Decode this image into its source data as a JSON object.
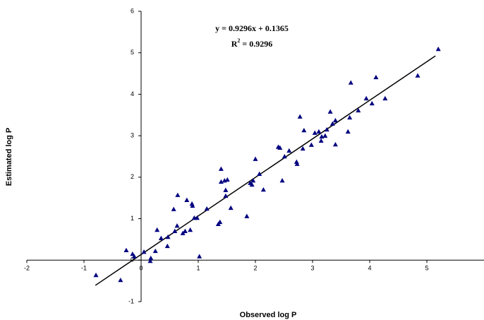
{
  "chart_data": {
    "type": "scatter",
    "x_label": "Observed log P",
    "y_label": "Estimated log P",
    "annotations": {
      "equation": "y = 0.9296x + 0.1365",
      "r2": {
        "base": "R",
        "sup": "2",
        "rest": " = 0.9296"
      }
    },
    "xlim": [
      -2,
      6
    ],
    "xticks": [
      -2,
      -1,
      0,
      1,
      2,
      3,
      4,
      5
    ],
    "ylim": [
      -1,
      6
    ],
    "yticks": [
      -1,
      0,
      1,
      2,
      3,
      4,
      5,
      6
    ],
    "marker_color": "#000080",
    "line_color": "#000000",
    "trendline": {
      "slope": 0.9296,
      "intercept": 0.1365,
      "x": [
        -0.8,
        5.15
      ]
    },
    "x": [
      -0.79,
      -0.36,
      -0.26,
      -0.15,
      -0.12,
      0.05,
      0.16,
      0.17,
      0.25,
      0.28,
      0.35,
      0.46,
      0.47,
      0.57,
      0.59,
      0.63,
      0.64,
      0.73,
      0.77,
      0.8,
      0.86,
      0.89,
      0.9,
      0.93,
      0.98,
      1.02,
      1.15,
      1.35,
      1.38,
      1.4,
      1.4,
      1.46,
      1.48,
      1.48,
      1.51,
      1.57,
      1.85,
      1.91,
      1.94,
      1.96,
      2.0,
      2.07,
      2.14,
      2.4,
      2.43,
      2.47,
      2.51,
      2.59,
      2.72,
      2.73,
      2.78,
      2.83,
      2.85,
      2.98,
      3.04,
      3.11,
      3.15,
      3.16,
      3.22,
      3.25,
      3.31,
      3.35,
      3.4,
      3.4,
      3.62,
      3.65,
      3.67,
      3.8,
      3.94,
      4.04,
      4.11,
      4.27,
      4.84,
      5.2
    ],
    "values": [
      -0.36,
      -0.48,
      0.24,
      0.15,
      0.09,
      0.2,
      -0.02,
      0.05,
      0.22,
      0.73,
      0.53,
      0.34,
      0.56,
      1.23,
      0.7,
      0.83,
      1.57,
      0.65,
      0.7,
      1.45,
      0.73,
      1.36,
      1.31,
      1.02,
      1.02,
      0.09,
      1.24,
      0.87,
      0.92,
      2.2,
      1.89,
      1.92,
      1.69,
      1.55,
      1.94,
      1.26,
      1.06,
      1.86,
      1.82,
      1.92,
      2.44,
      2.08,
      1.7,
      2.73,
      2.71,
      1.92,
      2.5,
      2.64,
      2.37,
      2.32,
      3.46,
      2.69,
      3.13,
      2.78,
      3.07,
      3.1,
      2.88,
      2.98,
      3.0,
      3.15,
      3.58,
      3.29,
      2.79,
      3.37,
      3.1,
      3.44,
      4.28,
      3.61,
      3.9,
      3.78,
      4.41,
      3.9,
      4.45,
      5.09
    ]
  }
}
